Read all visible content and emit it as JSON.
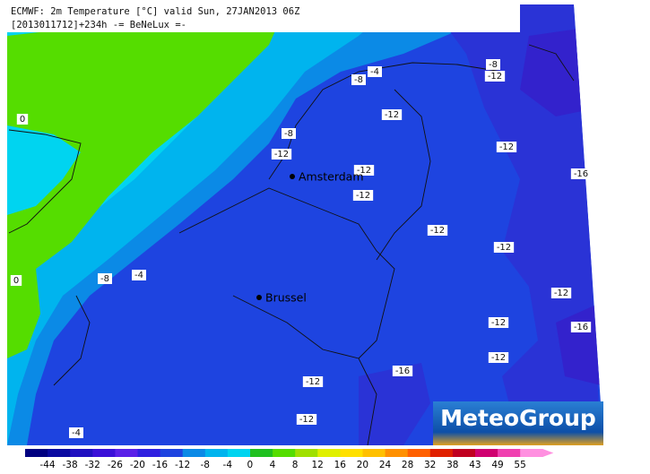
{
  "header": {
    "line1": "ECMWF: 2m Temperature [°C] valid Sun, 27JAN2013 06Z",
    "line2": "[2013011712]+234h -= BeNeLux =-"
  },
  "cities": [
    "Amsterdam",
    "Brussel"
  ],
  "contour_labels": [
    "-4",
    "-8",
    "-8",
    "-12",
    "-12",
    "-8",
    "-12",
    "-12",
    "-12",
    "-16",
    "-12",
    "-12",
    "-12",
    "0",
    "-8",
    "-4",
    "0",
    "-12",
    "-12",
    "-16",
    "-12",
    "-16",
    "-12",
    "-12",
    "-4"
  ],
  "colorbar": {
    "ticks": [
      -44,
      -38,
      -32,
      -26,
      -20,
      -16,
      -12,
      -8,
      -4,
      0,
      4,
      8,
      12,
      16,
      20,
      24,
      28,
      32,
      38,
      43,
      49,
      55
    ]
  },
  "logo": "MeteoGroup"
}
